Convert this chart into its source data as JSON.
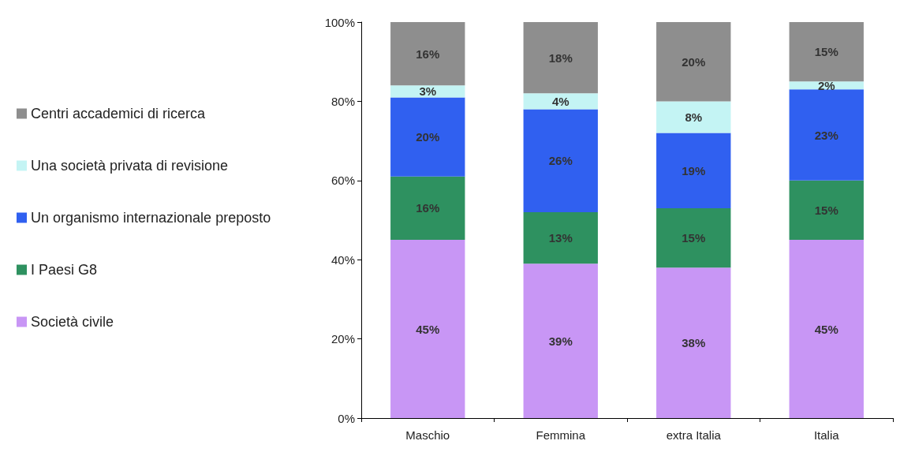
{
  "chart_data": {
    "type": "bar",
    "stacked": true,
    "categories": [
      "Maschio",
      "Femmina",
      "extra Italia",
      "Italia"
    ],
    "series": [
      {
        "name": "Società civile",
        "color": "#c896f5",
        "values": [
          45,
          39,
          38,
          45
        ],
        "value_labels": [
          "45%",
          "39%",
          "38%",
          "45%"
        ]
      },
      {
        "name": "I Paesi G8",
        "color": "#2e9160",
        "values": [
          16,
          13,
          15,
          15
        ],
        "value_labels": [
          "16%",
          "13%",
          "15%",
          "15%"
        ]
      },
      {
        "name": "Un organismo internazionale preposto",
        "color": "#3060f0",
        "values": [
          20,
          26,
          19,
          23
        ],
        "value_labels": [
          "20%",
          "26%",
          "19%",
          "23%"
        ]
      },
      {
        "name": "Una società privata di revisione",
        "color": "#c4f4f4",
        "values": [
          3,
          4,
          8,
          2
        ],
        "value_labels": [
          "3%",
          "4%",
          "8%",
          "2%"
        ]
      },
      {
        "name": "Centri accademici di ricerca",
        "color": "#8e8e8e",
        "values": [
          16,
          18,
          20,
          15
        ],
        "value_labels": [
          "16%",
          "18%",
          "20%",
          "15%"
        ]
      }
    ],
    "ylim": [
      0,
      100
    ],
    "yticks": [
      {
        "value": 0,
        "label": "0%"
      },
      {
        "value": 20,
        "label": "20%"
      },
      {
        "value": 40,
        "label": "40%"
      },
      {
        "value": 60,
        "label": "60%"
      },
      {
        "value": 80,
        "label": "80%"
      },
      {
        "value": 100,
        "label": "100%"
      }
    ],
    "grid": false,
    "legend": "left"
  }
}
